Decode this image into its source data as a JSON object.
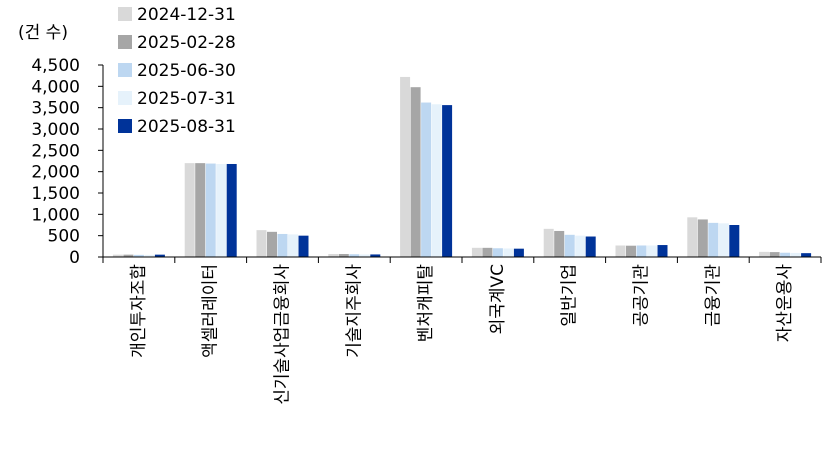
{
  "chart_data": {
    "type": "bar",
    "unit_label": "(건 수)",
    "categories": [
      "개인투자조합",
      "액셀러레이터",
      "신기술사업금융회사",
      "기술지주회사",
      "벤처캐피탈",
      "외국계VC",
      "일반기업",
      "공공기관",
      "금융기관",
      "자산운용사"
    ],
    "series": [
      {
        "name": "2024-12-31",
        "color": "#d9d9d9",
        "values": [
          55,
          2200,
          630,
          70,
          4220,
          215,
          660,
          270,
          930,
          120
        ]
      },
      {
        "name": "2025-02-28",
        "color": "#a6a6a6",
        "values": [
          55,
          2200,
          590,
          70,
          3980,
          215,
          610,
          265,
          880,
          115
        ]
      },
      {
        "name": "2025-06-30",
        "color": "#bdd7f1",
        "values": [
          50,
          2190,
          540,
          65,
          3620,
          205,
          520,
          270,
          800,
          100
        ]
      },
      {
        "name": "2025-07-31",
        "color": "#e6f2fb",
        "values": [
          50,
          2180,
          530,
          60,
          3580,
          200,
          500,
          270,
          790,
          95
        ]
      },
      {
        "name": "2025-08-31",
        "color": "#003399",
        "values": [
          55,
          2180,
          500,
          60,
          3560,
          195,
          480,
          280,
          750,
          90
        ]
      }
    ],
    "yticks": [
      "0",
      "500",
      "1,000",
      "1,500",
      "2,000",
      "2,500",
      "3,000",
      "3,500",
      "4,000",
      "4,500"
    ],
    "ylim": [
      0,
      4500
    ],
    "grid": false,
    "legend": "top-left"
  }
}
